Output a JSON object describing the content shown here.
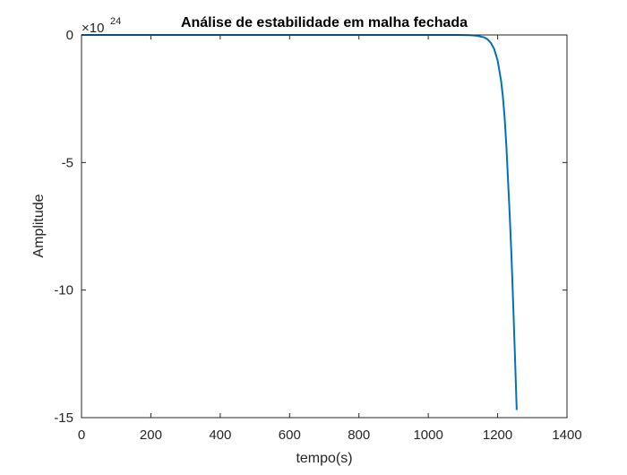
{
  "chart_data": {
    "type": "line",
    "title": "Análise de estabilidade em malha fechada",
    "xlabel": "tempo(s)",
    "ylabel": "Amplitude",
    "xlim": [
      0,
      1400
    ],
    "ylim": [
      -15,
      0
    ],
    "x_ticks": [
      0,
      200,
      400,
      600,
      800,
      1000,
      1200,
      1400
    ],
    "x_tick_labels": [
      "0",
      "200",
      "400",
      "600",
      "800",
      "1000",
      "1200",
      "1400"
    ],
    "y_ticks": [
      0,
      -5,
      -10,
      -15
    ],
    "y_tick_labels": [
      "0",
      "-5",
      "-10",
      "-15"
    ],
    "y_exponent_base": "×10",
    "y_exponent_power": "24",
    "grid": false,
    "legend": "none",
    "series": [
      {
        "color": "#0072BD",
        "x": [
          0,
          200,
          400,
          600,
          800,
          1000,
          1080,
          1120,
          1140,
          1160,
          1170,
          1180,
          1190,
          1200,
          1210,
          1215,
          1220,
          1225,
          1230,
          1235,
          1240,
          1245,
          1250,
          1255
        ],
        "y": [
          0,
          0,
          0,
          0,
          0,
          0,
          -0.002,
          -0.01,
          -0.03,
          -0.09,
          -0.16,
          -0.3,
          -0.55,
          -1.0,
          -1.8,
          -2.4,
          -3.2,
          -4.3,
          -5.7,
          -7.1,
          -8.7,
          -10.6,
          -12.6,
          -14.7
        ]
      }
    ]
  }
}
